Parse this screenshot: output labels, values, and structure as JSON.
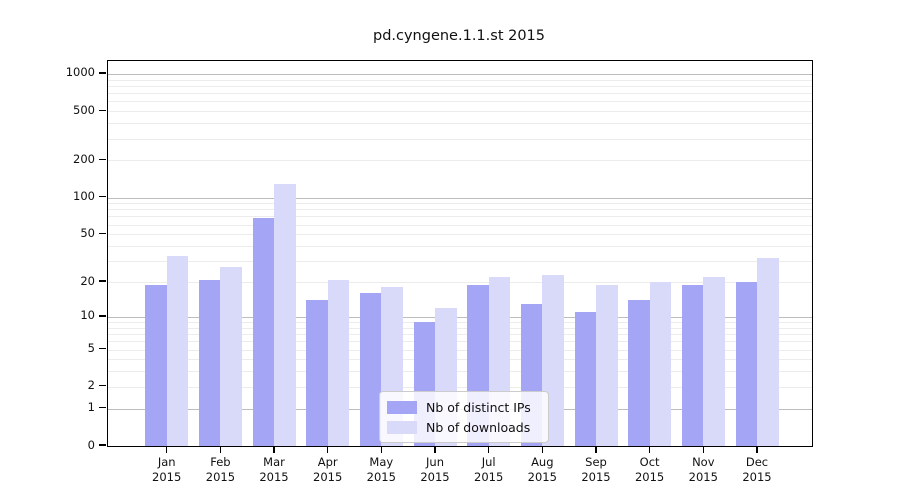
{
  "title": "pd.cyngene.1.1.st 2015",
  "chart_data": {
    "type": "bar",
    "title": "pd.cyngene.1.1.st 2015",
    "categories": [
      "Jan",
      "Feb",
      "Mar",
      "Apr",
      "May",
      "Jun",
      "Jul",
      "Aug",
      "Sep",
      "Oct",
      "Nov",
      "Dec"
    ],
    "category_year": "2015",
    "series": [
      {
        "name": "Nb of distinct IPs",
        "color": "#a5a5f5",
        "values": [
          19,
          21,
          68,
          14,
          16,
          9,
          19,
          13,
          11,
          14,
          19,
          20
        ]
      },
      {
        "name": "Nb of downloads",
        "color": "#d9d9f9",
        "values": [
          33,
          27,
          130,
          21,
          18,
          12,
          22,
          23,
          19,
          20,
          22,
          32
        ]
      }
    ],
    "xlabel": "",
    "ylabel": "",
    "y_axis": {
      "scale": "log1p",
      "ticks": [
        0,
        1,
        2,
        5,
        10,
        20,
        50,
        100,
        200,
        500,
        1000
      ],
      "range": [
        0,
        1000
      ]
    },
    "grid": {
      "major_lines": [
        1,
        10,
        100,
        1000
      ],
      "minor_lines": [
        2,
        3,
        4,
        5,
        6,
        7,
        8,
        9,
        20,
        30,
        40,
        50,
        60,
        70,
        80,
        90,
        200,
        300,
        400,
        500,
        600,
        700,
        800,
        900
      ],
      "major_color": "#bdbdbd",
      "minor_color": "#ececec"
    },
    "legend_position": "inside-bottom-center",
    "colors": {
      "bar_distinct_ips": "#a5a5f5",
      "bar_downloads": "#d9d9f9",
      "frame": "#000000",
      "background": "#ffffff"
    }
  }
}
